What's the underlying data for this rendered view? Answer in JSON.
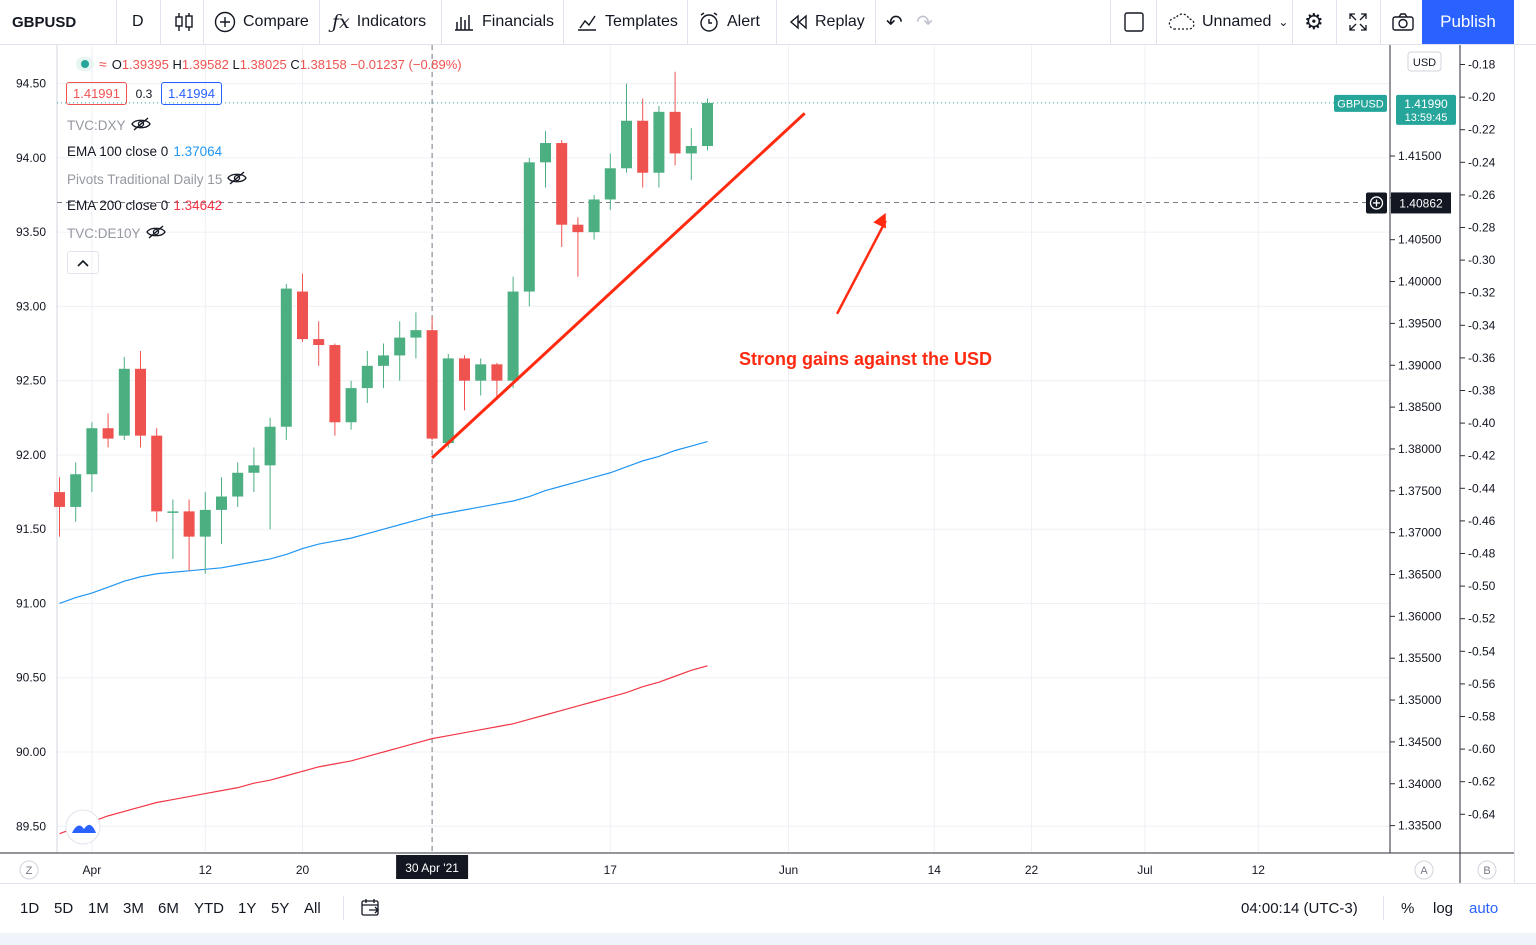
{
  "toolbar": {
    "symbol": "GBPUSD",
    "interval": "D",
    "compare": "Compare",
    "indicators": "Indicators",
    "financials": "Financials",
    "templates": "Templates",
    "alert": "Alert",
    "replay": "Replay",
    "layout_name": "Unnamed",
    "publish": "Publish"
  },
  "legend": {
    "ohlc_labels": [
      "O",
      "H",
      "L",
      "C"
    ],
    "open": "1.39395",
    "high": "1.39582",
    "low": "1.38025",
    "close": "1.38158",
    "change": "−0.01237 (−0.89%)",
    "bid": "1.41991",
    "spread": "0.3",
    "ask": "1.41994",
    "indicators": [
      {
        "name": "TVC:DXY",
        "value": "",
        "hidden": true
      },
      {
        "name": "EMA 100 close 0",
        "value": "1.37064",
        "color": "#2196f3",
        "hidden": false
      },
      {
        "name": "Pivots Traditional Daily 15",
        "value": "",
        "hidden": true
      },
      {
        "name": "EMA 200 close 0",
        "value": "1.34642",
        "color": "#f23645",
        "hidden": false
      },
      {
        "name": "TVC:DE10Y",
        "value": "",
        "hidden": true
      }
    ]
  },
  "chart_data": {
    "type": "candlestick",
    "symbol": "GBPUSD",
    "x_ticks": [
      "Apr",
      "12",
      "20",
      "30 Apr '21",
      "17",
      "Jun",
      "14",
      "22",
      "Jul",
      "12"
    ],
    "left_axis": {
      "ticks": [
        "94.50",
        "94.00",
        "93.50",
        "93.00",
        "92.50",
        "92.00",
        "91.50",
        "91.00",
        "90.50",
        "90.00",
        "89.50"
      ],
      "range": [
        89.32,
        94.76
      ]
    },
    "right_axis": {
      "unit": "USD",
      "ticks": [
        "1.41500",
        "1.41000",
        "1.40500",
        "1.40000",
        "1.39500",
        "1.39000",
        "1.38500",
        "1.38000",
        "1.37500",
        "1.37000",
        "1.36500",
        "1.36000",
        "1.35500",
        "1.35000",
        "1.34500",
        "1.34000",
        "1.33500"
      ]
    },
    "far_right_axis": {
      "ticks": [
        "-0.18",
        "-0.20",
        "-0.22",
        "-0.24",
        "-0.26",
        "-0.28",
        "-0.30",
        "-0.32",
        "-0.34",
        "-0.36",
        "-0.38",
        "-0.40",
        "-0.42",
        "-0.44",
        "-0.46",
        "-0.48",
        "-0.50",
        "-0.52",
        "-0.54",
        "-0.56",
        "-0.58",
        "-0.60",
        "-0.62",
        "-0.64"
      ]
    },
    "candles": [
      {
        "o": 91.75,
        "h": 91.85,
        "l": 91.45,
        "c": 91.65
      },
      {
        "o": 91.65,
        "h": 91.95,
        "l": 91.55,
        "c": 91.87
      },
      {
        "o": 91.87,
        "h": 92.22,
        "l": 91.75,
        "c": 92.18
      },
      {
        "o": 92.18,
        "h": 92.28,
        "l": 92.05,
        "c": 92.11
      },
      {
        "o": 92.13,
        "h": 92.66,
        "l": 92.1,
        "c": 92.58
      },
      {
        "o": 92.58,
        "h": 92.7,
        "l": 92.05,
        "c": 92.13
      },
      {
        "o": 92.13,
        "h": 92.18,
        "l": 91.55,
        "c": 91.62
      },
      {
        "o": 91.62,
        "h": 91.7,
        "l": 91.3,
        "c": 91.62
      },
      {
        "o": 91.62,
        "h": 91.7,
        "l": 91.22,
        "c": 91.45
      },
      {
        "o": 91.45,
        "h": 91.75,
        "l": 91.2,
        "c": 91.63
      },
      {
        "o": 91.63,
        "h": 91.85,
        "l": 91.4,
        "c": 91.72
      },
      {
        "o": 91.72,
        "h": 91.95,
        "l": 91.65,
        "c": 91.88
      },
      {
        "o": 91.88,
        "h": 92.05,
        "l": 91.75,
        "c": 91.93
      },
      {
        "o": 91.93,
        "h": 92.25,
        "l": 91.5,
        "c": 92.19
      },
      {
        "o": 92.19,
        "h": 93.15,
        "l": 92.1,
        "c": 93.12
      },
      {
        "o": 93.1,
        "h": 93.22,
        "l": 92.76,
        "c": 92.78
      },
      {
        "o": 92.78,
        "h": 92.9,
        "l": 92.6,
        "c": 92.74
      },
      {
        "o": 92.74,
        "h": 92.75,
        "l": 92.13,
        "c": 92.22
      },
      {
        "o": 92.22,
        "h": 92.5,
        "l": 92.17,
        "c": 92.45
      },
      {
        "o": 92.45,
        "h": 92.7,
        "l": 92.35,
        "c": 92.6
      },
      {
        "o": 92.6,
        "h": 92.75,
        "l": 92.45,
        "c": 92.67
      },
      {
        "o": 92.67,
        "h": 92.9,
        "l": 92.5,
        "c": 92.79
      },
      {
        "o": 92.79,
        "h": 92.96,
        "l": 92.65,
        "c": 92.84
      },
      {
        "o": 92.84,
        "h": 92.93,
        "l": 92.1,
        "c": 92.11
      },
      {
        "o": 92.08,
        "h": 92.68,
        "l": 92.05,
        "c": 92.65
      },
      {
        "o": 92.65,
        "h": 92.67,
        "l": 92.3,
        "c": 92.5
      },
      {
        "o": 92.5,
        "h": 92.65,
        "l": 92.4,
        "c": 92.61
      },
      {
        "o": 92.61,
        "h": 92.62,
        "l": 92.37,
        "c": 92.5
      },
      {
        "o": 92.5,
        "h": 93.2,
        "l": 92.45,
        "c": 93.1
      },
      {
        "o": 93.1,
        "h": 94.0,
        "l": 93.0,
        "c": 93.97
      },
      {
        "o": 93.97,
        "h": 94.18,
        "l": 93.8,
        "c": 94.1
      },
      {
        "o": 94.1,
        "h": 94.12,
        "l": 93.4,
        "c": 93.55
      },
      {
        "o": 93.55,
        "h": 93.6,
        "l": 93.2,
        "c": 93.5
      },
      {
        "o": 93.5,
        "h": 93.75,
        "l": 93.45,
        "c": 93.72
      },
      {
        "o": 93.72,
        "h": 94.03,
        "l": 93.65,
        "c": 93.93
      },
      {
        "o": 93.93,
        "h": 94.5,
        "l": 93.9,
        "c": 94.25
      },
      {
        "o": 94.25,
        "h": 94.4,
        "l": 93.8,
        "c": 93.9
      },
      {
        "o": 93.9,
        "h": 94.35,
        "l": 93.8,
        "c": 94.31
      },
      {
        "o": 94.31,
        "h": 94.58,
        "l": 93.95,
        "c": 94.03
      },
      {
        "o": 94.03,
        "h": 94.2,
        "l": 93.85,
        "c": 94.08
      },
      {
        "o": 94.08,
        "h": 94.4,
        "l": 94.05,
        "c": 94.37
      }
    ],
    "ema100": [
      91.0,
      91.04,
      91.07,
      91.11,
      91.15,
      91.18,
      91.2,
      91.21,
      91.22,
      91.23,
      91.24,
      91.26,
      91.28,
      91.3,
      91.33,
      91.37,
      91.4,
      91.42,
      91.44,
      91.47,
      91.5,
      91.53,
      91.56,
      91.59,
      91.61,
      91.63,
      91.65,
      91.67,
      91.69,
      91.72,
      91.76,
      91.79,
      91.82,
      91.85,
      91.88,
      91.92,
      91.96,
      91.99,
      92.03,
      92.06,
      92.09
    ],
    "ema200": [
      89.45,
      89.49,
      89.53,
      89.57,
      89.6,
      89.63,
      89.66,
      89.68,
      89.7,
      89.72,
      89.74,
      89.76,
      89.79,
      89.81,
      89.84,
      89.87,
      89.9,
      89.92,
      89.94,
      89.97,
      90.0,
      90.03,
      90.06,
      90.09,
      90.11,
      90.13,
      90.15,
      90.17,
      90.19,
      90.22,
      90.25,
      90.28,
      90.31,
      90.34,
      90.37,
      90.4,
      90.44,
      90.47,
      90.51,
      90.55,
      90.58
    ],
    "current_price": {
      "label": "GBPUSD",
      "value": "1.41990",
      "countdown": "13:59:45",
      "level": 94.37
    },
    "crosshair": {
      "price": "1.40862",
      "level": 93.7,
      "date": "30 Apr '21",
      "index": 23
    },
    "trendline": {
      "from": {
        "index": 23,
        "value": 91.98
      },
      "to": {
        "index": 46,
        "value": 94.3
      }
    },
    "annotation": {
      "text": "Strong gains against the USD",
      "arrow_from": {
        "index": 48,
        "value": 92.95
      },
      "arrow_to": {
        "index": 51,
        "value": 93.63
      }
    }
  },
  "bottombar": {
    "timeframes": [
      "1D",
      "5D",
      "1M",
      "3M",
      "6M",
      "YTD",
      "1Y",
      "5Y",
      "All"
    ],
    "time": "04:00:14 (UTC-3)",
    "percent": "%",
    "log": "log",
    "auto": "auto",
    "scale_a": "A",
    "scale_b": "B",
    "zoom_z": "Z"
  },
  "colors": {
    "up": "#26a69a",
    "up_fill": "#4caf82",
    "down": "#ef5350",
    "ema100": "#2196f3",
    "ema200": "#f23645",
    "accent": "#2962ff",
    "annotation": "#ff2a10"
  }
}
